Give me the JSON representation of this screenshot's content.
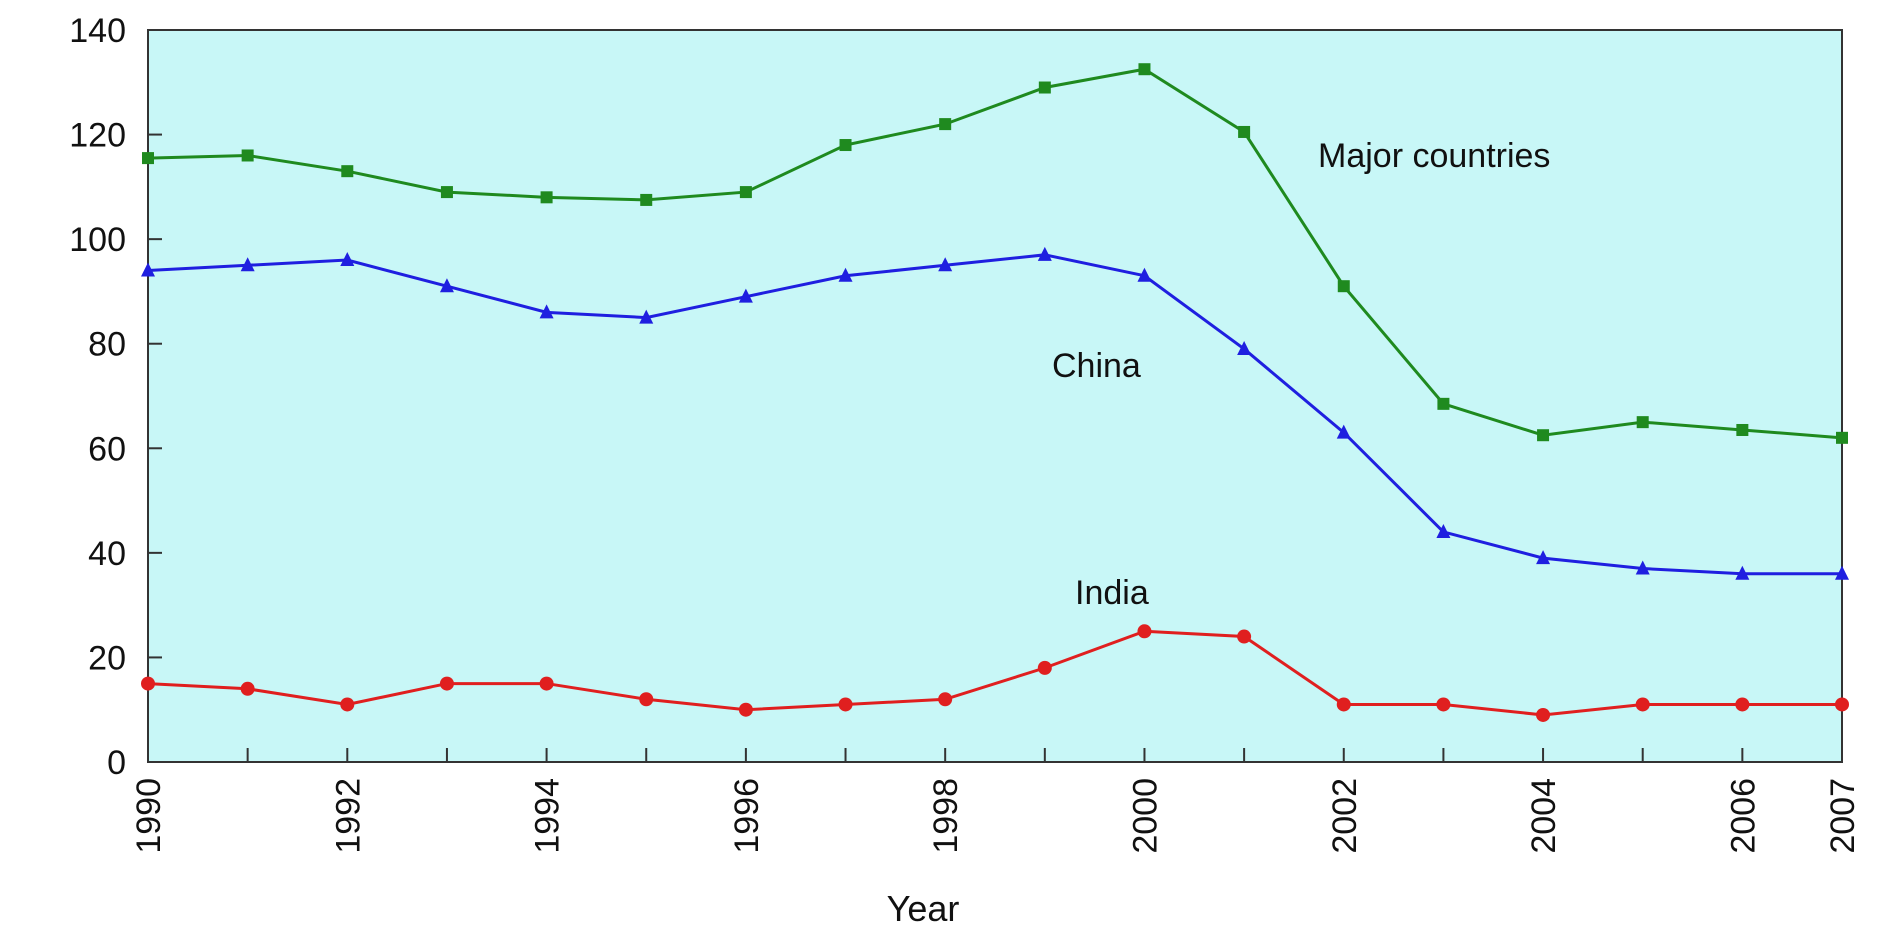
{
  "chart_data": {
    "type": "line",
    "title": "",
    "xlabel": "Year",
    "ylabel": "",
    "xlim": [
      1990,
      2007
    ],
    "ylim": [
      0,
      140
    ],
    "grid": false,
    "legend": "inline labels",
    "plot_background": "#c8f7f7",
    "x": [
      1990,
      1991,
      1992,
      1993,
      1994,
      1995,
      1996,
      1997,
      1998,
      1999,
      2000,
      2001,
      2002,
      2003,
      2004,
      2005,
      2006,
      2007
    ],
    "x_tick_labels": [
      "1990",
      "1992",
      "1994",
      "1996",
      "1998",
      "2000",
      "2002",
      "2004",
      "2006",
      "2007"
    ],
    "y_tick_labels": [
      "0",
      "20",
      "40",
      "60",
      "80",
      "100",
      "120",
      "140"
    ],
    "series": [
      {
        "name": "Major countries",
        "color": "#1f8a1f",
        "marker": "square",
        "values": [
          115.5,
          116,
          113,
          109,
          108,
          107.5,
          109,
          118,
          122,
          129,
          132.5,
          120.5,
          91,
          68.5,
          62.5,
          65,
          63.5,
          62
        ]
      },
      {
        "name": "China",
        "color": "#1f1fe0",
        "marker": "triangle",
        "values": [
          94,
          95,
          96,
          91,
          86,
          85,
          89,
          93,
          95,
          97,
          93,
          79,
          63,
          44,
          39,
          37,
          36,
          36
        ]
      },
      {
        "name": "India",
        "color": "#e01f1f",
        "marker": "circle",
        "values": [
          15,
          14,
          11,
          15,
          15,
          12,
          10,
          11,
          12,
          18,
          25,
          24,
          11,
          11,
          9,
          11,
          11,
          11
        ]
      }
    ]
  }
}
